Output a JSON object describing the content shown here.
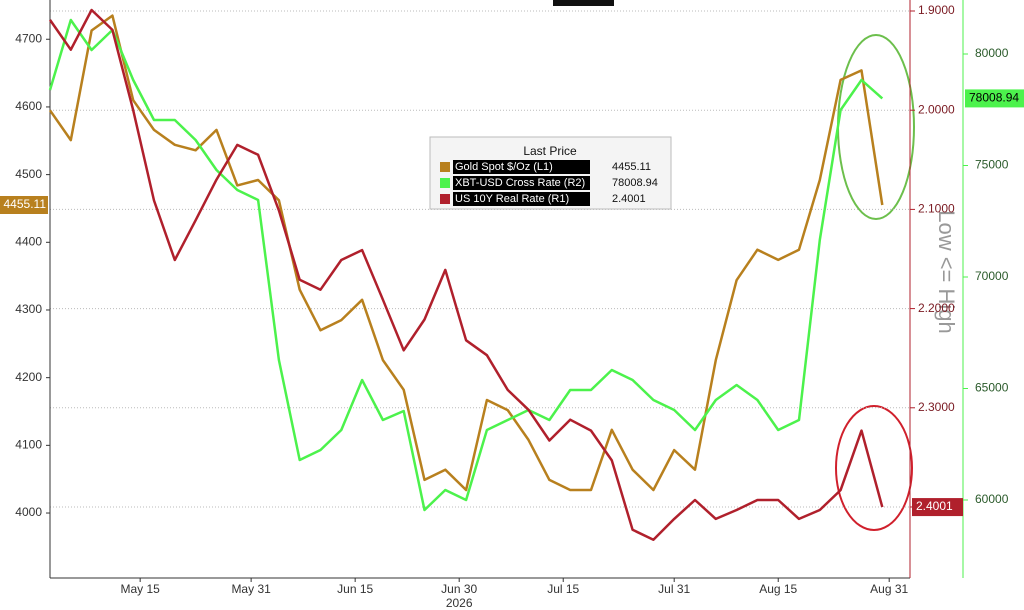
{
  "chart_data": {
    "type": "line",
    "legend_title": "Last Price",
    "annotation": "Low <= High",
    "xlabel": "2026",
    "x": [
      "2026-05-02",
      "2026-05-05",
      "2026-05-08",
      "2026-05-11",
      "2026-05-14",
      "2026-05-17",
      "2026-05-20",
      "2026-05-23",
      "2026-05-26",
      "2026-05-29",
      "2026-06-01",
      "2026-06-04",
      "2026-06-07",
      "2026-06-10",
      "2026-06-13",
      "2026-06-16",
      "2026-06-19",
      "2026-06-22",
      "2026-06-25",
      "2026-06-28",
      "2026-07-01",
      "2026-07-04",
      "2026-07-07",
      "2026-07-10",
      "2026-07-13",
      "2026-07-16",
      "2026-07-19",
      "2026-07-22",
      "2026-07-25",
      "2026-07-28",
      "2026-07-31",
      "2026-08-03",
      "2026-08-06",
      "2026-08-09",
      "2026-08-12",
      "2026-08-15",
      "2026-08-18",
      "2026-08-21",
      "2026-08-24",
      "2026-08-27",
      "2026-08-30"
    ],
    "xlim": [
      "2026-05-02",
      "2026-09-03"
    ],
    "xticks": [
      {
        "value": "2026-05-15",
        "label": "May 15"
      },
      {
        "value": "2026-05-31",
        "label": "May 31"
      },
      {
        "value": "2026-06-15",
        "label": "Jun 15"
      },
      {
        "value": "2026-06-30",
        "label": "Jun 30"
      },
      {
        "value": "2026-07-15",
        "label": "Jul 15"
      },
      {
        "value": "2026-07-31",
        "label": "Jul 31"
      },
      {
        "value": "2026-08-15",
        "label": "Aug 15"
      },
      {
        "value": "2026-08-31",
        "label": "Aug 31"
      }
    ],
    "ylim": [
      3904,
      4758
    ],
    "yticks": [
      4000,
      4100,
      4200,
      4300,
      4400,
      4500,
      4600,
      4700
    ],
    "y2lim": [
      2.4716,
      1.8889
    ],
    "y2ticks": [
      {
        "value": 1.9,
        "label": "1.9000"
      },
      {
        "value": 2.0,
        "label": "2.0000"
      },
      {
        "value": 2.1,
        "label": "2.1000"
      },
      {
        "value": 2.2,
        "label": "2.2000"
      },
      {
        "value": 2.3,
        "label": "2.3000"
      },
      {
        "value": 2.4,
        "label": "2.4000"
      }
    ],
    "y3lim": [
      56502,
      82422
    ],
    "y3ticks": [
      60000,
      65000,
      70000,
      75000,
      80000
    ],
    "grid": true,
    "series": [
      {
        "name": "Gold Spot $/Oz (L1)",
        "color": "#b8801e",
        "axis": "y",
        "values": [
          4595,
          4551,
          4713,
          4735,
          4610,
          4566,
          4544,
          4536,
          4566,
          4484,
          4492,
          4462,
          4330,
          4270,
          4285,
          4315,
          4226,
          4182,
          4049,
          4064,
          4034,
          4167,
          4152,
          4108,
          4049,
          4034,
          4034,
          4123,
          4064,
          4034,
          4093,
          4064,
          4226,
          4344,
          4389,
          4374,
          4389,
          4492,
          4640,
          4654,
          4455.11
        ]
      },
      {
        "name": "XBT-USD Cross Rate (R2)",
        "color": "#4cf24c",
        "axis": "y3",
        "values": [
          78386,
          81525,
          80179,
          81076,
          78834,
          77040,
          77040,
          76143,
          74798,
          73901,
          73453,
          66278,
          61794,
          62242,
          63139,
          65381,
          63587,
          63991,
          59552,
          60448,
          60000,
          63139,
          63587,
          64036,
          63587,
          64933,
          64933,
          65830,
          65381,
          64484,
          64036,
          63139,
          64484,
          65157,
          64484,
          63139,
          63587,
          71659,
          77489,
          78834,
          78008.94
        ]
      },
      {
        "name": "US 10Y Real Rate (R1)",
        "color": "#b0202c",
        "axis": "y2",
        "values": [
          1.909,
          1.939,
          1.899,
          1.919,
          2.0,
          2.091,
          2.151,
          2.111,
          2.07,
          2.035,
          2.045,
          2.101,
          2.171,
          2.181,
          2.151,
          2.141,
          2.191,
          2.242,
          2.211,
          2.161,
          2.232,
          2.247,
          2.282,
          2.302,
          2.333,
          2.312,
          2.323,
          2.353,
          2.423,
          2.433,
          2.412,
          2.393,
          2.412,
          2.403,
          2.393,
          2.393,
          2.412,
          2.403,
          2.383,
          2.323,
          2.4001
        ]
      }
    ]
  }
}
